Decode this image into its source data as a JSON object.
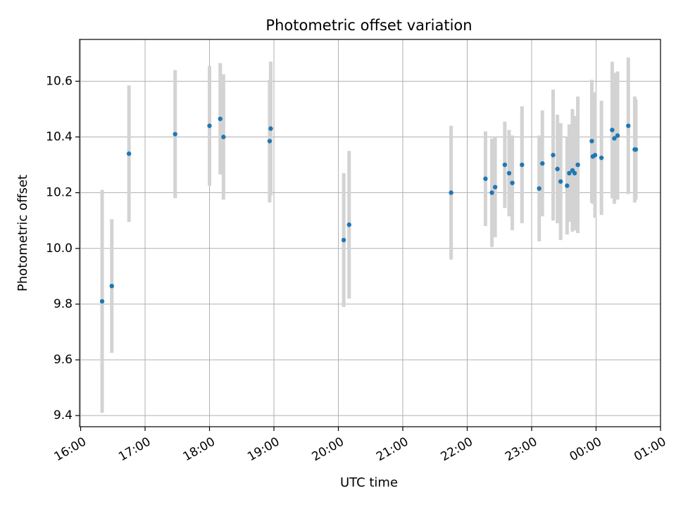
{
  "chart_data": {
    "type": "scatter",
    "title": "Photometric offset variation",
    "xlabel": "UTC time",
    "ylabel": "Photometric offset",
    "x_unit": "UTC time (HH:MM, times after midnight continue past 24:00)",
    "xlim": [
      "15:59",
      "25:00"
    ],
    "ylim": [
      9.36,
      10.75
    ],
    "x_ticks": [
      "16:00",
      "17:00",
      "18:00",
      "19:00",
      "20:00",
      "21:00",
      "22:00",
      "23:00",
      "00:00",
      "01:00"
    ],
    "y_ticks": [
      "9.4",
      "9.6",
      "9.8",
      "10.0",
      "10.2",
      "10.4",
      "10.6"
    ],
    "grid": true,
    "colors": {
      "marker": "#1f77b4",
      "errorbar": "#d3d3d3",
      "grid": "#b0b0b0",
      "axis": "#000000"
    },
    "points": [
      {
        "time": "16:20",
        "y": 9.81,
        "err": 0.4
      },
      {
        "time": "16:29",
        "y": 9.865,
        "err": 0.24
      },
      {
        "time": "16:45",
        "y": 10.34,
        "err": 0.245
      },
      {
        "time": "17:28",
        "y": 10.41,
        "err": 0.23
      },
      {
        "time": "18:00",
        "y": 10.44,
        "err": 0.215
      },
      {
        "time": "18:10",
        "y": 10.465,
        "err": 0.2
      },
      {
        "time": "18:13",
        "y": 10.4,
        "err": 0.225
      },
      {
        "time": "18:56",
        "y": 10.385,
        "err": 0.22
      },
      {
        "time": "18:57",
        "y": 10.43,
        "err": 0.24
      },
      {
        "time": "20:05",
        "y": 10.03,
        "err": 0.24
      },
      {
        "time": "20:10",
        "y": 10.085,
        "err": 0.265
      },
      {
        "time": "21:45",
        "y": 10.2,
        "err": 0.24
      },
      {
        "time": "22:17",
        "y": 10.25,
        "err": 0.17
      },
      {
        "time": "22:23",
        "y": 10.2,
        "err": 0.195
      },
      {
        "time": "22:26",
        "y": 10.22,
        "err": 0.18
      },
      {
        "time": "22:35",
        "y": 10.3,
        "err": 0.155
      },
      {
        "time": "22:39",
        "y": 10.27,
        "err": 0.155
      },
      {
        "time": "22:42",
        "y": 10.235,
        "err": 0.17
      },
      {
        "time": "22:51",
        "y": 10.3,
        "err": 0.21
      },
      {
        "time": "23:07",
        "y": 10.215,
        "err": 0.19
      },
      {
        "time": "23:10",
        "y": 10.305,
        "err": 0.19
      },
      {
        "time": "23:20",
        "y": 10.335,
        "err": 0.235
      },
      {
        "time": "23:24",
        "y": 10.285,
        "err": 0.195
      },
      {
        "time": "23:27",
        "y": 10.24,
        "err": 0.21
      },
      {
        "time": "23:33",
        "y": 10.225,
        "err": 0.175
      },
      {
        "time": "23:35",
        "y": 10.27,
        "err": 0.175
      },
      {
        "time": "23:38",
        "y": 10.28,
        "err": 0.22
      },
      {
        "time": "23:40",
        "y": 10.27,
        "err": 0.205
      },
      {
        "time": "23:43",
        "y": 10.3,
        "err": 0.245
      },
      {
        "time": "23:56",
        "y": 10.385,
        "err": 0.22
      },
      {
        "time": "23:57",
        "y": 10.33,
        "err": 0.17
      },
      {
        "time": "23:59",
        "y": 10.335,
        "err": 0.225
      },
      {
        "time": "24:05",
        "y": 10.325,
        "err": 0.205
      },
      {
        "time": "24:15",
        "y": 10.425,
        "err": 0.245
      },
      {
        "time": "24:17",
        "y": 10.395,
        "err": 0.235
      },
      {
        "time": "24:20",
        "y": 10.405,
        "err": 0.23
      },
      {
        "time": "24:30",
        "y": 10.44,
        "err": 0.245
      },
      {
        "time": "24:36",
        "y": 10.355,
        "err": 0.19
      },
      {
        "time": "24:37",
        "y": 10.355,
        "err": 0.18
      }
    ]
  }
}
